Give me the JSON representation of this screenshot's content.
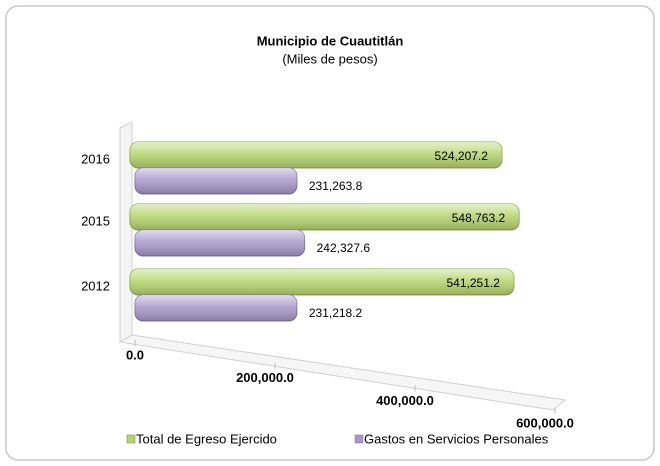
{
  "chart_data": {
    "type": "bar",
    "orientation": "horizontal",
    "title": "Municipio de Cuautitlán",
    "subtitle": "(Miles de pesos)",
    "categories": [
      "2016",
      "2015",
      "2012"
    ],
    "series": [
      {
        "name": "Total de Egreso Ejercido",
        "color": "#b5d46e",
        "values": [
          524207.2,
          548763.2,
          541251.2
        ],
        "value_labels": [
          "524,207.2",
          "548,763.2",
          "541,251.2"
        ]
      },
      {
        "name": "Gastos en Servicios Personales",
        "color": "#a898c9",
        "values": [
          231263.8,
          242327.6,
          231218.2
        ],
        "value_labels": [
          "231,263.8",
          "242,327.6",
          "231,218.2"
        ]
      }
    ],
    "xlim": [
      0,
      600000
    ],
    "xticks": [
      {
        "value": 0,
        "label": "0.0"
      },
      {
        "value": 200000,
        "label": "200,000.0"
      },
      {
        "value": 400000,
        "label": "400,000.0"
      },
      {
        "value": 600000,
        "label": "600,000.0"
      }
    ],
    "legend": "bottom"
  }
}
